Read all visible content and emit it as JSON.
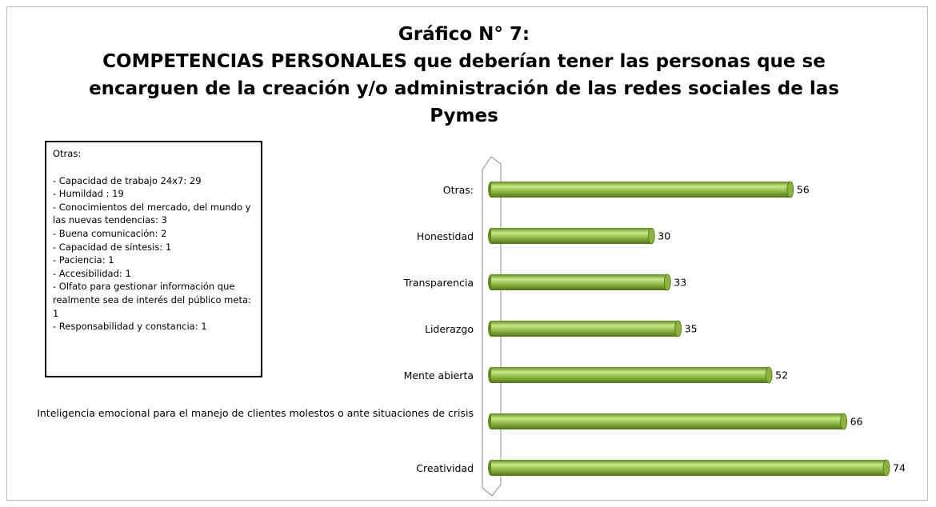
{
  "chart_data": {
    "type": "bar",
    "orientation": "horizontal",
    "title": "Gráfico N° 7:",
    "subtitle": "COMPETENCIAS PERSONALES que deberían tener las personas que se encarguen de la creación y/o administración de las redes sociales de las Pymes",
    "categories": [
      "Otras:",
      "Honestidad",
      "Transparencia",
      "Liderazgo",
      "Mente abierta",
      "Inteligencia emocional para el manejo de clientes molestos o ante situaciones de crisis",
      "Creatividad"
    ],
    "values": [
      56,
      30,
      33,
      35,
      52,
      66,
      74
    ],
    "color": "#8cb33e",
    "annotation": {
      "title": "Otras:",
      "items": [
        "- Capacidad de trabajo 24x7: 29",
        "- Humildad : 19",
        "- Conocimientos del mercado, del mundo y las nuevas tendencias:  3",
        "- Buena comunicación: 2",
        "- Capacidad de síntesis: 1",
        "- Paciencia: 1",
        "- Accesibilidad: 1",
        "- Olfato para gestionar información que realmente sea de interés del público meta: 1",
        "- Responsabilidad y constancia: 1"
      ]
    }
  }
}
